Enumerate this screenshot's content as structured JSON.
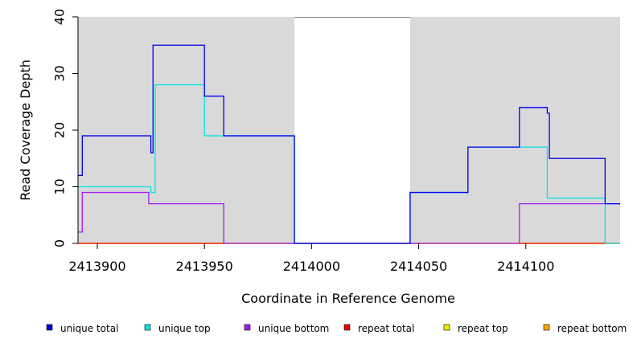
{
  "chart_data": {
    "type": "line",
    "step": true,
    "xlabel": "Coordinate in Reference Genome",
    "ylabel": "Read Coverage Depth",
    "xlim": [
      2413891,
      2414144
    ],
    "ylim": [
      0,
      40
    ],
    "x_ticks": [
      2413900,
      2413950,
      2414000,
      2414050,
      2414100
    ],
    "y_ticks": [
      0,
      10,
      20,
      30,
      40
    ],
    "grid": false,
    "background_color": "#d9d9d9",
    "gaps": [
      [
        2413992,
        2414046
      ]
    ],
    "legend_position": "bottom",
    "series": [
      {
        "name": "unique total",
        "color": "#0000ee",
        "points": [
          [
            2413891,
            12
          ],
          [
            2413893,
            19
          ],
          [
            2413925,
            16
          ],
          [
            2413926,
            35
          ],
          [
            2413950,
            26
          ],
          [
            2413959,
            19
          ],
          [
            2413992,
            0
          ],
          [
            2414046,
            9
          ],
          [
            2414073,
            17
          ],
          [
            2414097,
            24
          ],
          [
            2414110,
            23
          ],
          [
            2414111,
            15
          ],
          [
            2414137,
            7
          ],
          [
            2414144,
            7
          ]
        ]
      },
      {
        "name": "unique top",
        "color": "#00e5e5",
        "points": [
          [
            2413891,
            10
          ],
          [
            2413925,
            9
          ],
          [
            2413927,
            28
          ],
          [
            2413950,
            19
          ],
          [
            2413992,
            0
          ],
          [
            2414046,
            9
          ],
          [
            2414073,
            17
          ],
          [
            2414110,
            8
          ],
          [
            2414137,
            0
          ],
          [
            2414144,
            0
          ]
        ]
      },
      {
        "name": "unique bottom",
        "color": "#a020f0",
        "points": [
          [
            2413891,
            2
          ],
          [
            2413893,
            9
          ],
          [
            2413924,
            7
          ],
          [
            2413959,
            0
          ],
          [
            2414097,
            7
          ],
          [
            2414144,
            7
          ]
        ]
      },
      {
        "name": "repeat total",
        "color": "#ee0000",
        "points": [
          [
            2413891,
            0
          ],
          [
            2414144,
            0
          ]
        ]
      },
      {
        "name": "repeat top",
        "color": "#eeee00",
        "points": [
          [
            2413891,
            0
          ],
          [
            2414144,
            0
          ]
        ]
      },
      {
        "name": "repeat bottom",
        "color": "#ffa500",
        "points": [
          [
            2413891,
            0
          ],
          [
            2414144,
            0
          ]
        ]
      }
    ]
  }
}
